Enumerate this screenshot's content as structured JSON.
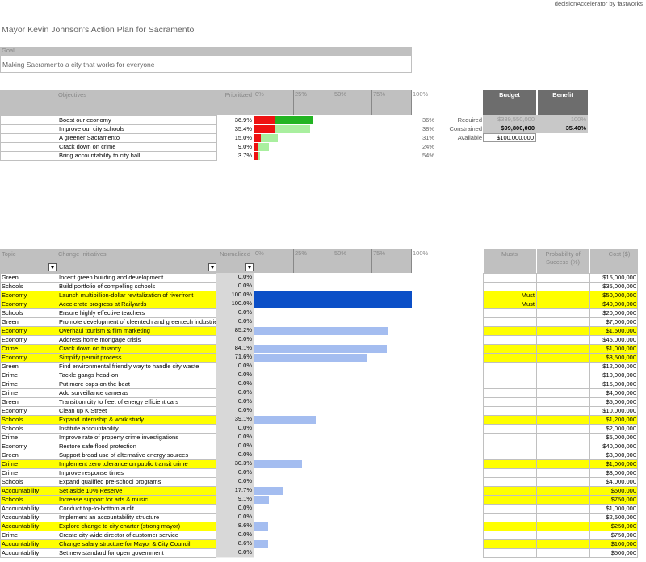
{
  "header": {
    "brand": "decisionAccelerator by fastworks",
    "title": "Mayor Kevin Johnson's Action Plan for Sacramento"
  },
  "goal": {
    "label": "Goal",
    "text": "Making Sacramento a city that works for everyone"
  },
  "objectives": {
    "columns": {
      "name": "Objectives",
      "prioritized": "Prioritized"
    },
    "scale": {
      "min": 0,
      "max": 100,
      "ticks": [
        {
          "value": 0,
          "label": "0%"
        },
        {
          "value": 25,
          "label": "25%"
        },
        {
          "value": 50,
          "label": "50%"
        },
        {
          "value": 75,
          "label": "75%"
        },
        {
          "value": 100,
          "label": "100%"
        }
      ]
    },
    "red_color": "#ee1111",
    "rows": [
      {
        "name": "Boost our economy",
        "prioritized": {
          "value": 36.9,
          "label": "36.9%"
        },
        "red": 12.8,
        "green": 24.1,
        "green_color": "#22b422",
        "share": "36%"
      },
      {
        "name": "Improve our city schools",
        "prioritized": {
          "value": 35.4,
          "label": "35.4%"
        },
        "red": 12.8,
        "green": 22.6,
        "green_color": "#a9ef9f",
        "share": "38%"
      },
      {
        "name": "A greener Sacramento",
        "prioritized": {
          "value": 15.0,
          "label": "15.0%"
        },
        "red": 4.0,
        "green": 11.0,
        "green_color": "#a9ef9f",
        "share": "31%"
      },
      {
        "name": "Crack down on crime",
        "prioritized": {
          "value": 9.0,
          "label": "9.0%"
        },
        "red": 2.5,
        "green": 6.5,
        "green_color": "#a9ef9f",
        "share": "24%"
      },
      {
        "name": "Bring accountability to city hall",
        "prioritized": {
          "value": 3.7,
          "label": "3.7%"
        },
        "red": 2.5,
        "green": 1.2,
        "green_color": "#a9ef9f",
        "share": "54%"
      }
    ]
  },
  "budget": {
    "columns": {
      "budget": "Budget",
      "benefit": "Benefit"
    },
    "rows": [
      {
        "label": "Required",
        "budget": "$339,550,000",
        "benefit": "100%"
      },
      {
        "label": "Constrained",
        "budget": "$99,800,000",
        "benefit": "35.40%"
      },
      {
        "label": "Available",
        "budget": "$100,000,000"
      }
    ]
  },
  "initiatives": {
    "columns": {
      "topic": "Topic",
      "initiative": "Change Initiatives",
      "normalized": "Normalized",
      "musts": "Musts",
      "probability": "Probability of Success (%)",
      "cost": "Cost ($)"
    },
    "scale": {
      "min": 0,
      "max": 100,
      "ticks": [
        {
          "value": 0,
          "label": "0%"
        },
        {
          "value": 25,
          "label": "25%"
        },
        {
          "value": 50,
          "label": "50%"
        },
        {
          "value": 75,
          "label": "75%"
        },
        {
          "value": 100,
          "label": "100%"
        }
      ]
    },
    "bar_color": "#a4bdf0",
    "must_bar_color": "#0b4fc7",
    "highlight_color": "#ffff00",
    "rows": [
      {
        "topic": "Green",
        "initiative": "Incent green building and development",
        "normalized": {
          "value": 0.0,
          "label": "0.0%"
        },
        "cost": "$15,000,000"
      },
      {
        "topic": "Schools",
        "initiative": "Build portfolio of compelling schools",
        "normalized": {
          "value": 0.0,
          "label": "0.0%"
        },
        "cost": "$35,000,000"
      },
      {
        "topic": "Economy",
        "initiative": "Launch multibillion-dollar revitalization of riverfront",
        "normalized": {
          "value": 100.0,
          "label": "100.0%"
        },
        "must": "Must",
        "cost": "$50,000,000",
        "selected": true
      },
      {
        "topic": "Economy",
        "initiative": "Accelerate progress at Railyards",
        "normalized": {
          "value": 100.0,
          "label": "100.0%"
        },
        "must": "Must",
        "cost": "$40,000,000",
        "selected": true
      },
      {
        "topic": "Schools",
        "initiative": "Ensure highly effective teachers",
        "normalized": {
          "value": 0.0,
          "label": "0.0%"
        },
        "cost": "$20,000,000"
      },
      {
        "topic": "Green",
        "initiative": "Promote development of cleentech and greentech industries",
        "normalized": {
          "value": 0.0,
          "label": "0.0%"
        },
        "cost": "$7,000,000"
      },
      {
        "topic": "Economy",
        "initiative": "Overhaul tourism & film marketing",
        "normalized": {
          "value": 85.2,
          "label": "85.2%"
        },
        "cost": "$1,500,000",
        "selected": true
      },
      {
        "topic": "Economy",
        "initiative": "Address home mortgage crisis",
        "normalized": {
          "value": 0.0,
          "label": "0.0%"
        },
        "cost": "$45,000,000"
      },
      {
        "topic": "Crime",
        "initiative": "Crack down on truancy",
        "normalized": {
          "value": 84.1,
          "label": "84.1%"
        },
        "cost": "$1,000,000",
        "selected": true
      },
      {
        "topic": "Economy",
        "initiative": "Simplify permit process",
        "normalized": {
          "value": 71.6,
          "label": "71.6%"
        },
        "cost": "$3,500,000",
        "selected": true
      },
      {
        "topic": "Green",
        "initiative": "Find environmental friendly way to handle city waste",
        "normalized": {
          "value": 0.0,
          "label": "0.0%"
        },
        "cost": "$12,000,000"
      },
      {
        "topic": "Crime",
        "initiative": "Tackle gangs head-on",
        "normalized": {
          "value": 0.0,
          "label": "0.0%"
        },
        "cost": "$10,000,000"
      },
      {
        "topic": "Crime",
        "initiative": "Put more cops on the beat",
        "normalized": {
          "value": 0.0,
          "label": "0.0%"
        },
        "cost": "$15,000,000"
      },
      {
        "topic": "Crime",
        "initiative": "Add surveillance cameras",
        "normalized": {
          "value": 0.0,
          "label": "0.0%"
        },
        "cost": "$4,000,000"
      },
      {
        "topic": "Green",
        "initiative": "Transition city to fleet of energy efficient cars",
        "normalized": {
          "value": 0.0,
          "label": "0.0%"
        },
        "cost": "$5,000,000"
      },
      {
        "topic": "Economy",
        "initiative": "Clean up K Street",
        "normalized": {
          "value": 0.0,
          "label": "0.0%"
        },
        "cost": "$10,000,000"
      },
      {
        "topic": "Schools",
        "initiative": "Expand internship & work study",
        "normalized": {
          "value": 39.1,
          "label": "39.1%"
        },
        "cost": "$1,200,000",
        "selected": true
      },
      {
        "topic": "Schools",
        "initiative": "Institute accountability",
        "normalized": {
          "value": 0.0,
          "label": "0.0%"
        },
        "cost": "$2,000,000"
      },
      {
        "topic": "Crime",
        "initiative": "Improve rate of property crime investigations",
        "normalized": {
          "value": 0.0,
          "label": "0.0%"
        },
        "cost": "$5,000,000"
      },
      {
        "topic": "Economy",
        "initiative": "Restore safe flood protection",
        "normalized": {
          "value": 0.0,
          "label": "0.0%"
        },
        "cost": "$40,000,000"
      },
      {
        "topic": "Green",
        "initiative": "Support broad use of alternative energy sources",
        "normalized": {
          "value": 0.0,
          "label": "0.0%"
        },
        "cost": "$3,000,000"
      },
      {
        "topic": "Crime",
        "initiative": "Implement zero tolerance on public transit crime",
        "normalized": {
          "value": 30.3,
          "label": "30.3%"
        },
        "cost": "$1,000,000",
        "selected": true
      },
      {
        "topic": "Crime",
        "initiative": "Improve response times",
        "normalized": {
          "value": 0.0,
          "label": "0.0%"
        },
        "cost": "$3,000,000"
      },
      {
        "topic": "Schools",
        "initiative": "Expand qualified pre-school programs",
        "normalized": {
          "value": 0.0,
          "label": "0.0%"
        },
        "cost": "$4,000,000"
      },
      {
        "topic": "Accountability",
        "initiative": "Set aside 10% Reserve",
        "normalized": {
          "value": 17.7,
          "label": "17.7%"
        },
        "cost": "$500,000",
        "selected": true
      },
      {
        "topic": "Schools",
        "initiative": "Increase support for arts & music",
        "normalized": {
          "value": 9.1,
          "label": "9.1%"
        },
        "cost": "$750,000",
        "selected": true
      },
      {
        "topic": "Accountability",
        "initiative": "Conduct top-to-bottom audit",
        "normalized": {
          "value": 0.0,
          "label": "0.0%"
        },
        "cost": "$1,000,000"
      },
      {
        "topic": "Accountability",
        "initiative": "Implement an accountability structure",
        "normalized": {
          "value": 0.0,
          "label": "0.0%"
        },
        "cost": "$2,500,000"
      },
      {
        "topic": "Accountability",
        "initiative": "Explore change to city charter (strong mayor)",
        "normalized": {
          "value": 8.6,
          "label": "8.6%"
        },
        "cost": "$250,000",
        "selected": true
      },
      {
        "topic": "Crime",
        "initiative": "Create city-wide director of customer service",
        "normalized": {
          "value": 0.0,
          "label": "0.0%"
        },
        "cost": "$750,000"
      },
      {
        "topic": "Accountability",
        "initiative": "Change salary structure for Mayor & City Council",
        "normalized": {
          "value": 8.6,
          "label": "8.6%"
        },
        "cost": "$100,000",
        "selected": true
      },
      {
        "topic": "Accountability",
        "initiative": "Set new standard for open government",
        "normalized": {
          "value": 0.0,
          "label": "0.0%"
        },
        "cost": "$500,000"
      }
    ]
  }
}
